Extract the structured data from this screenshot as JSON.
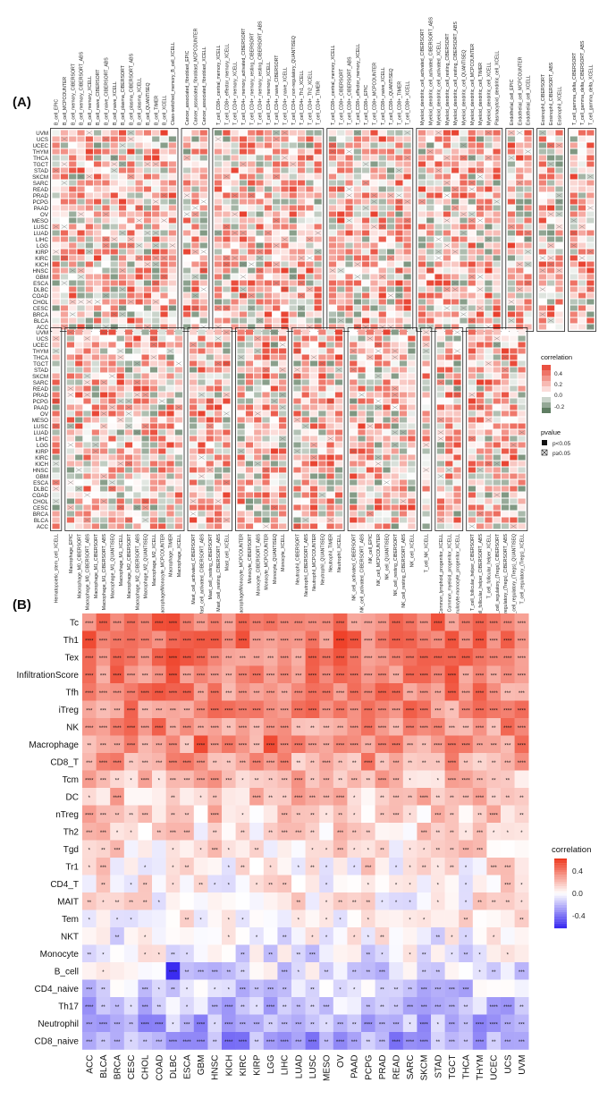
{
  "panels": {
    "a_label": "(A)",
    "b_label": "(B)"
  },
  "chart_data": [
    {
      "type": "heatmap",
      "panel": "(A)",
      "rows": [
        "UVM",
        "UCS",
        "UCEC",
        "THYM",
        "THCA",
        "TGCT",
        "STAD",
        "SKCM",
        "SARC",
        "READ",
        "PRAD",
        "PCPG",
        "PAAD",
        "OV",
        "MESO",
        "LUSC",
        "LUAD",
        "LIHC",
        "LGG",
        "KIRP",
        "KIRC",
        "KICH",
        "HNSC",
        "GBM",
        "ESCA",
        "DLBC",
        "COAD",
        "CHOL",
        "CESC",
        "BRCA",
        "BLCA",
        "ACC"
      ],
      "top_groups": [
        [
          "B_cell_EPIC",
          "B_cell_MCPCOUNTER",
          "B_cell_memory_CIBERSORT",
          "B_cell_memory_CIBERSORT_ABS",
          "B_cell_memory_XCELL",
          "B_cell_naive_CIBERSORT",
          "B_cell_naive_CIBERSORT_ABS",
          "B_cell_naive_XCELL",
          "B_cell_plasma_CIBERSORT",
          "B_cell_plasma_CIBERSORT_ABS",
          "B_cell_plasma_XCELL",
          "B_cell_QUANTISEQ",
          "B_cell_TIMER",
          "B_cell_XCELL",
          "Class-switched_memory_B_cell_XCELL"
        ],
        [
          "Cancer_associated_fibroblast_EPIC",
          "Cancer_associated_fibroblast_MCPCOUNTER",
          "Cancer_associated_fibroblast_XCELL"
        ],
        [
          "T_cell_CD8+_central_memory_XCELL",
          "T_cell_CD8+_effector_memory_XCELL",
          "T_cell_CD4+_memory_XCELL",
          "T_cell_CD4+_memory_activated_CIBERSORT",
          "T_cell_CD4+_memory_resting_CIBERSORT",
          "T_cell_CD4+_memory_resting_CIBERSORT_ABS",
          "T_cell_CD4+_memory_XCELL",
          "T_cell_CD4+_naive_CIBERSORT",
          "T_cell_CD4+_naive_XCELL",
          "T_cell_CD4+_non-regulatory_QUANTISEQ",
          "T_cell_CD4+_Th1_XCELL",
          "T_cell_CD4+_Th2_XCELL",
          "T_cell_CD4+_TIMER"
        ],
        [
          "T_cell_CD8+_central_memory_XCELL",
          "T_cell_CD8+_CIBERSORT",
          "T_cell_CD8+_CIBERSORT_ABS",
          "T_cell_CD8+_effector_memory_XCELL",
          "T_cell_CD8+_EPIC",
          "T_cell_CD8+_MCPCOUNTER",
          "T_cell_CD8+_naive_XCELL",
          "T_cell_CD8+_QUANTISEQ",
          "T_cell_CD8+_TIMER",
          "T_cell_CD8+_XCELL"
        ],
        [
          "Myeloid_dendritic_cell_activated_CIBERSORT",
          "Myeloid_dendritic_cell_activated_CIBERSORT_ABS",
          "Myeloid_dendritic_cell_activated_XCELL",
          "Myeloid_dendritic_cell_resting_CIBERSORT",
          "Myeloid_dendritic_cell_resting_CIBERSORT_ABS",
          "Myeloid_dendritic_cell_QUANTISEQ",
          "Myeloid_dendritic_cell_MCPCOUNTER",
          "Myeloid_dendritic_cell_TIMER",
          "Myeloid_dendritic_cell_XCELL",
          "Plasmacytoid_dendritic_cell_XCELL"
        ],
        [
          "Endothelial_cell_EPIC",
          "Endothelial_cell_MCPCOUNTER",
          "Endothelial_cell_XCELL"
        ],
        [
          "Eosinophil_CIBERSORT",
          "Eosinophil_CIBERSORT_ABS",
          "Eosinophil_XCELL"
        ],
        [
          "T_cell_gamma_delta_CIBERSORT",
          "T_cell_gamma_delta_CIBERSORT_ABS",
          "T_cell_gamma_delta_XCELL"
        ]
      ],
      "bottom_groups": [
        [
          "Hematopoietic_stem_cell_XCELL"
        ],
        [
          "Macrophage_EPIC",
          "Macrophage_M0_CIBERSORT",
          "Macrophage_M0_CIBERSORT_ABS",
          "Macrophage_M1_CIBERSORT",
          "Macrophage_M1_CIBERSORT_ABS",
          "Macrophage_M1_QUANTISEQ",
          "Macrophage_M1_XCELL",
          "Macrophage_M2_CIBERSORT",
          "Macrophage_M2_CIBERSORT_ABS",
          "Macrophage_M2_QUANTISEQ",
          "Macrophage_M2_XCELL",
          "Macrophage/Monocyte_MCPCOUNTER",
          "Macrophage_TIMER",
          "Macrophage_XCELL"
        ],
        [
          "Mast_cell_activated_CIBERSORT",
          "Mast_cell_activated_CIBERSORT_ABS",
          "Mast_cell_resting_CIBERSORT",
          "Mast_cell_resting_CIBERSORT_ABS",
          "Mast_cell_XCELL"
        ],
        [
          "Macrophage/Monocyte_MCPCOUNTER",
          "Monocyte_CIBERSORT",
          "Monocyte_CIBERSORT_ABS",
          "Monocyte_MCPCOUNTER",
          "Monocyte_QUANTISEQ",
          "Monocyte_XCELL"
        ],
        [
          "Neutrophil_CIBERSORT",
          "Neutrophil_CIBERSORT_ABS",
          "Neutrophil_MCPCOUNTER",
          "Neutrophil_QUANTISEQ",
          "Neutrophil_TIMER",
          "Neutrophil_XCELL"
        ],
        [
          "NK_cell_activated_CIBERSORT",
          "NK_cell_activated_CIBERSORT_ABS",
          "NK_cell_EPIC",
          "NK_cell_MCPCOUNTER",
          "NK_cell_QUANTISEQ",
          "NK_cell_resting_CIBERSORT",
          "NK_cell_resting_CIBERSORT_ABS",
          "NK_cell_XCELL"
        ],
        [
          "T_cell_NK_XCELL"
        ],
        [
          "Common_lymphoid_progenitor_XCELL",
          "Common_myeloid_progenitor_XCELL",
          "Granulocyte-monocyte_progenitor_XCELL"
        ],
        [
          "T_cell_follicular_helper_CIBERSORT",
          "T_cell_follicular_helper_CIBERSORT_ABS",
          "T_cell_follicular_helper_XCELL",
          "T_cell_regulatory_(Tregs)_CIBERSORT",
          "T_cell_regulatory_(Tregs)_CIBERSORT_ABS",
          "T_cell_regulatory_(Tregs)_QUANTISEQ",
          "T_cell_regulatory_(Tregs)_XCELL"
        ]
      ],
      "legend": {
        "correlation_title": "correlation",
        "correlation_ticks": [
          "0.4",
          "0.2",
          "0.0",
          "-0.2"
        ],
        "pvalue_title": "pvalue",
        "pvalue_items": [
          "p<0.05",
          "p≥0.05"
        ]
      },
      "colors": {
        "high": "#e8402e",
        "mid": "#ffffff",
        "low": "#5f7d62"
      },
      "value_range": [
        -0.3,
        0.55
      ]
    },
    {
      "type": "heatmap",
      "panel": "(B)",
      "rows": [
        "Tc",
        "Th1",
        "Tex",
        "InfiltrationScore",
        "Tfh",
        "iTreg",
        "NK",
        "Macrophage",
        "CD8_T",
        "Tcm",
        "DC",
        "nTreg",
        "Th2",
        "Tgd",
        "Tr1",
        "CD4_T",
        "MAIT",
        "Tem",
        "NKT",
        "Monocyte",
        "B_cell",
        "CD4_naive",
        "Th17",
        "Neutrophil",
        "CD8_naive"
      ],
      "columns": [
        "ACC",
        "BLCA",
        "BRCA",
        "CESC",
        "CHOL",
        "COAD",
        "DLBC",
        "ESCA",
        "GBM",
        "HNSC",
        "KICH",
        "KIRC",
        "KIRP",
        "LGG",
        "LIHC",
        "LUAD",
        "LUSC",
        "MESO",
        "OV",
        "PAAD",
        "PCPG",
        "PRAD",
        "READ",
        "SARC",
        "SKCM",
        "STAD",
        "TGCT",
        "THCA",
        "THYM",
        "UCEC",
        "UCS",
        "UVM"
      ],
      "row_base": [
        0.42,
        0.42,
        0.4,
        0.4,
        0.36,
        0.34,
        0.33,
        0.32,
        0.28,
        0.2,
        0.18,
        0.15,
        0.1,
        0.08,
        0.06,
        0.05,
        0.04,
        0.02,
        -0.02,
        -0.05,
        -0.08,
        -0.14,
        -0.16,
        -0.22,
        -0.26
      ],
      "legend": {
        "title": "correlation",
        "ticks": [
          "0.4",
          "0.0",
          "-0.4"
        ]
      },
      "colors": {
        "high": "#ee3b22",
        "mid": "#ffffff",
        "low": "#3b2cf0"
      },
      "value_range": [
        -0.6,
        0.6
      ]
    }
  ]
}
